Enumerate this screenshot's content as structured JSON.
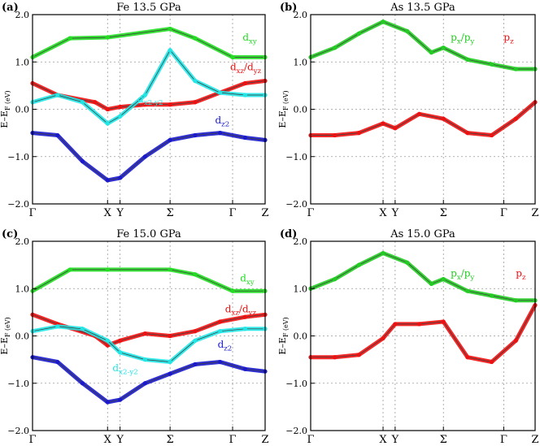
{
  "chart_data": [
    {
      "type": "line",
      "panel_label": "(a)",
      "title": "Fe  13.5 GPa",
      "ylabel": "E–E_F (eV)",
      "ylim": [
        -2.0,
        2.0
      ],
      "yticks": [
        "2.0",
        "1.0",
        "0.0",
        "−1.0",
        "−2.0"
      ],
      "ytick_values": [
        2,
        1,
        0,
        -1,
        -2
      ],
      "xticks": [
        "Γ",
        "X",
        "Y",
        "Σ",
        "Γ",
        "Z"
      ],
      "xtick_values": [
        0,
        3,
        3.5,
        5.5,
        8.0,
        9.3
      ],
      "grid": true,
      "series": [
        {
          "name": "d_xy",
          "color": "#22dd22",
          "label_pos": [
            8.4,
            1.45
          ],
          "width": [
            4,
            0,
            0,
            4
          ],
          "x": [
            0,
            1.5,
            3.0,
            5.5,
            6.5,
            8.0,
            9.3
          ],
          "y": [
            1.1,
            1.5,
            1.52,
            1.7,
            1.5,
            1.1,
            1.1
          ]
        },
        {
          "name": "d_xz/d_yz",
          "color": "#ee1111",
          "label_pos": [
            7.9,
            0.82
          ],
          "x": [
            0,
            1.0,
            2.5,
            3.0,
            3.5,
            4.5,
            5.5,
            6.5,
            7.5,
            8.5,
            9.3
          ],
          "y": [
            0.55,
            0.3,
            0.15,
            0.0,
            0.05,
            0.1,
            0.1,
            0.15,
            0.35,
            0.55,
            0.6
          ]
        },
        {
          "name": "d_x2-y2",
          "color": "#22e5e5",
          "label_pos": [
            4.2,
            0.15
          ],
          "x": [
            0,
            1.0,
            2.0,
            3.0,
            3.5,
            4.5,
            5.5,
            6.5,
            7.5,
            8.5,
            9.3
          ],
          "y": [
            0.15,
            0.3,
            0.15,
            -0.3,
            -0.15,
            0.3,
            1.25,
            0.6,
            0.35,
            0.3,
            0.3
          ]
        },
        {
          "name": "d_z2",
          "color": "#1a1acc",
          "label_pos": [
            7.3,
            -0.3
          ],
          "x": [
            0,
            1.0,
            2.0,
            3.0,
            3.5,
            4.5,
            5.5,
            6.5,
            7.5,
            8.5,
            9.3
          ],
          "y": [
            -0.5,
            -0.55,
            -1.1,
            -1.5,
            -1.45,
            -1.0,
            -0.65,
            -0.55,
            -0.5,
            -0.6,
            -0.65
          ]
        }
      ]
    },
    {
      "type": "line",
      "panel_label": "(b)",
      "title": "As   13.5 GPa",
      "ylabel": "E–E_F (eV)",
      "ylim": [
        -2.0,
        2.0
      ],
      "yticks": [
        "2.0",
        "1.0",
        "0.0",
        "−1.0",
        "−2.0"
      ],
      "ytick_values": [
        2,
        1,
        0,
        -1,
        -2
      ],
      "xticks": [
        "Γ",
        "X",
        "Y",
        "Σ",
        "Γ",
        "Z"
      ],
      "xtick_values": [
        0,
        3,
        3.5,
        5.5,
        8.0,
        9.3
      ],
      "grid": true,
      "series": [
        {
          "name": "p_x/p_y",
          "color": "#22cc22",
          "label_pos": [
            5.8,
            1.45
          ],
          "x": [
            0,
            1.0,
            2.0,
            3.0,
            4.0,
            5.0,
            5.5,
            6.5,
            7.5,
            8.5,
            9.3
          ],
          "y": [
            1.1,
            1.3,
            1.6,
            1.85,
            1.65,
            1.2,
            1.3,
            1.05,
            0.95,
            0.85,
            0.85
          ]
        },
        {
          "name": "p_z",
          "color": "#ee1111",
          "label_pos": [
            8.0,
            1.45
          ],
          "x": [
            0,
            1.0,
            2.0,
            3.0,
            3.5,
            4.5,
            5.5,
            6.5,
            7.5,
            8.5,
            9.3
          ],
          "y": [
            -0.55,
            -0.55,
            -0.5,
            -0.3,
            -0.4,
            -0.1,
            -0.2,
            -0.5,
            -0.55,
            -0.2,
            0.15
          ]
        }
      ]
    },
    {
      "type": "line",
      "panel_label": "(c)",
      "title": "Fe  15.0 GPa",
      "ylabel": "E–E_F (eV)",
      "ylim": [
        -2.0,
        2.0
      ],
      "yticks": [
        "2.0",
        "1.0",
        "0.0",
        "−1.0",
        "−2.0"
      ],
      "ytick_values": [
        2,
        1,
        0,
        -1,
        -2
      ],
      "xticks": [
        "Γ",
        "X",
        "Y",
        "Σ",
        "Γ",
        "Z"
      ],
      "xtick_values": [
        0,
        3,
        3.5,
        5.5,
        8.0,
        9.3
      ],
      "grid": true,
      "series": [
        {
          "name": "d_xy",
          "color": "#22dd22",
          "label_pos": [
            8.3,
            1.15
          ],
          "x": [
            0,
            1.5,
            3.0,
            5.5,
            6.5,
            8.0,
            9.3
          ],
          "y": [
            0.95,
            1.4,
            1.4,
            1.4,
            1.3,
            0.95,
            0.95
          ]
        },
        {
          "name": "d_xz/d_yz",
          "color": "#ee1111",
          "label_pos": [
            7.7,
            0.5
          ],
          "x": [
            0,
            1.0,
            2.5,
            3.0,
            3.5,
            4.5,
            5.5,
            6.5,
            7.5,
            8.5,
            9.3
          ],
          "y": [
            0.45,
            0.25,
            0.0,
            -0.2,
            -0.1,
            0.05,
            0.0,
            0.1,
            0.3,
            0.4,
            0.45
          ]
        },
        {
          "name": "d_x2-y2",
          "color": "#22e5e5",
          "label_pos": [
            3.2,
            -0.75
          ],
          "x": [
            0,
            1.0,
            2.0,
            3.0,
            3.5,
            4.5,
            5.5,
            6.5,
            7.5,
            8.5,
            9.3
          ],
          "y": [
            0.1,
            0.2,
            0.15,
            -0.1,
            -0.35,
            -0.5,
            -0.55,
            -0.1,
            0.1,
            0.15,
            0.15
          ]
        },
        {
          "name": "d_z2",
          "color": "#1a1acc",
          "label_pos": [
            7.4,
            -0.25
          ],
          "x": [
            0,
            1.0,
            2.0,
            3.0,
            3.5,
            4.5,
            5.5,
            6.5,
            7.5,
            8.5,
            9.3
          ],
          "y": [
            -0.45,
            -0.55,
            -1.0,
            -1.4,
            -1.35,
            -1.0,
            -0.8,
            -0.6,
            -0.55,
            -0.7,
            -0.75
          ]
        }
      ]
    },
    {
      "type": "line",
      "panel_label": "(d)",
      "title": "As   15.0 GPa",
      "ylabel": "E–E_F (eV)",
      "ylim": [
        -2.0,
        2.0
      ],
      "yticks": [
        "2.0",
        "1.0",
        "0.0",
        "−1.0",
        "−2.0"
      ],
      "ytick_values": [
        2,
        1,
        0,
        -1,
        -2
      ],
      "xticks": [
        "Γ",
        "X",
        "Y",
        "Σ",
        "Γ",
        "Z"
      ],
      "xtick_values": [
        0,
        3,
        3.5,
        5.5,
        8.0,
        9.3
      ],
      "grid": true,
      "series": [
        {
          "name": "p_x/p_y",
          "color": "#22cc22",
          "label_pos": [
            5.8,
            1.25
          ],
          "x": [
            0,
            1.0,
            2.0,
            3.0,
            4.0,
            5.0,
            5.5,
            6.5,
            7.5,
            8.5,
            9.3
          ],
          "y": [
            1.0,
            1.2,
            1.5,
            1.75,
            1.55,
            1.1,
            1.2,
            0.95,
            0.85,
            0.75,
            0.75
          ]
        },
        {
          "name": "p_z",
          "color": "#ee1111",
          "label_pos": [
            8.5,
            1.25
          ],
          "x": [
            0,
            1.0,
            2.0,
            3.0,
            3.5,
            4.5,
            5.5,
            6.5,
            7.5,
            8.5,
            9.3
          ],
          "y": [
            -0.45,
            -0.45,
            -0.4,
            -0.05,
            0.25,
            0.25,
            0.3,
            -0.45,
            -0.55,
            -0.1,
            0.65
          ]
        }
      ]
    }
  ]
}
